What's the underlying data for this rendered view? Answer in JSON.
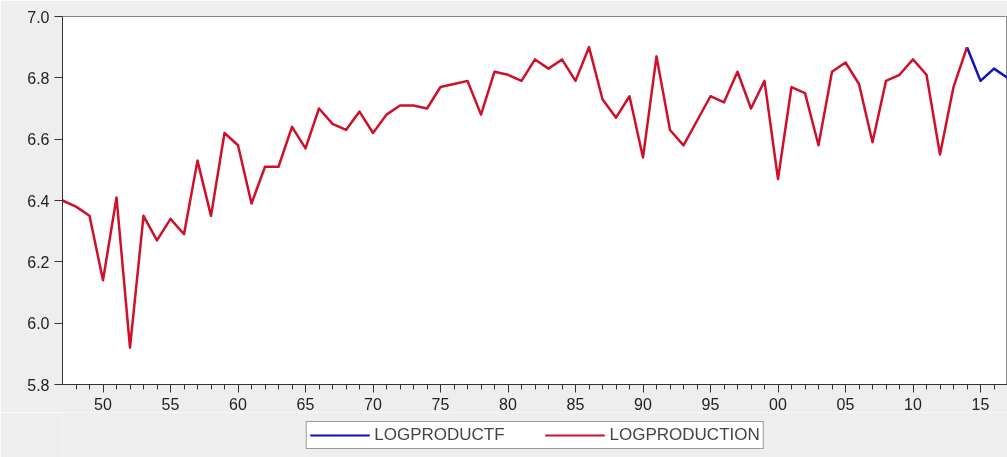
{
  "chart_data": {
    "type": "line",
    "x": [
      1947,
      1948,
      1949,
      1950,
      1951,
      1952,
      1953,
      1954,
      1955,
      1956,
      1957,
      1958,
      1959,
      1960,
      1961,
      1962,
      1963,
      1964,
      1965,
      1966,
      1967,
      1968,
      1969,
      1970,
      1971,
      1972,
      1973,
      1974,
      1975,
      1976,
      1977,
      1978,
      1979,
      1980,
      1981,
      1982,
      1983,
      1984,
      1985,
      1986,
      1987,
      1988,
      1989,
      1990,
      1991,
      1992,
      1993,
      1994,
      1995,
      1996,
      1997,
      1998,
      1999,
      2000,
      2001,
      2002,
      2003,
      2004,
      2005,
      2006,
      2007,
      2008,
      2009,
      2010,
      2011,
      2012,
      2013,
      2014,
      2015,
      2016,
      2017
    ],
    "series": [
      {
        "name": "LOGPRODUCTF",
        "color": "#1010c0",
        "values": [
          null,
          null,
          null,
          null,
          null,
          null,
          null,
          null,
          null,
          null,
          null,
          null,
          null,
          null,
          null,
          null,
          null,
          null,
          null,
          null,
          null,
          null,
          null,
          null,
          null,
          null,
          null,
          null,
          null,
          null,
          null,
          null,
          null,
          null,
          null,
          null,
          null,
          null,
          null,
          null,
          null,
          null,
          null,
          null,
          null,
          null,
          null,
          null,
          null,
          null,
          null,
          null,
          null,
          null,
          null,
          null,
          null,
          null,
          null,
          null,
          null,
          null,
          null,
          null,
          null,
          null,
          null,
          6.9,
          6.79,
          6.83,
          6.8
        ]
      },
      {
        "name": "LOGPRODUCTION",
        "color": "#d0102a",
        "values": [
          6.4,
          6.38,
          6.35,
          6.14,
          6.41,
          5.92,
          6.35,
          6.27,
          6.34,
          6.29,
          6.53,
          6.35,
          6.62,
          6.58,
          6.39,
          6.51,
          6.51,
          6.64,
          6.57,
          6.7,
          6.65,
          6.63,
          6.69,
          6.62,
          6.68,
          6.71,
          6.71,
          6.7,
          6.77,
          6.78,
          6.79,
          6.68,
          6.82,
          6.81,
          6.79,
          6.86,
          6.83,
          6.86,
          6.79,
          6.9,
          6.73,
          6.67,
          6.74,
          6.54,
          6.87,
          6.63,
          6.58,
          6.66,
          6.74,
          6.72,
          6.82,
          6.7,
          6.79,
          6.47,
          6.77,
          6.75,
          6.58,
          6.82,
          6.85,
          6.78,
          6.59,
          6.79,
          6.81,
          6.86,
          6.81,
          6.55,
          6.77,
          6.9,
          null,
          null,
          null
        ]
      }
    ],
    "xlim": [
      1947,
      2017
    ],
    "xticks": [
      {
        "value": 1948,
        "label": null
      },
      {
        "value": 1949,
        "label": null
      },
      {
        "value": 1950,
        "label": "50"
      },
      {
        "value": 1951,
        "label": null
      },
      {
        "value": 1952,
        "label": null
      },
      {
        "value": 1953,
        "label": null
      },
      {
        "value": 1954,
        "label": null
      },
      {
        "value": 1955,
        "label": "55"
      },
      {
        "value": 1956,
        "label": null
      },
      {
        "value": 1957,
        "label": null
      },
      {
        "value": 1958,
        "label": null
      },
      {
        "value": 1959,
        "label": null
      },
      {
        "value": 1960,
        "label": "60"
      },
      {
        "value": 1961,
        "label": null
      },
      {
        "value": 1962,
        "label": null
      },
      {
        "value": 1963,
        "label": null
      },
      {
        "value": 1964,
        "label": null
      },
      {
        "value": 1965,
        "label": "65"
      },
      {
        "value": 1966,
        "label": null
      },
      {
        "value": 1967,
        "label": null
      },
      {
        "value": 1968,
        "label": null
      },
      {
        "value": 1969,
        "label": null
      },
      {
        "value": 1970,
        "label": "70"
      },
      {
        "value": 1971,
        "label": null
      },
      {
        "value": 1972,
        "label": null
      },
      {
        "value": 1973,
        "label": null
      },
      {
        "value": 1974,
        "label": null
      },
      {
        "value": 1975,
        "label": "75"
      },
      {
        "value": 1976,
        "label": null
      },
      {
        "value": 1977,
        "label": null
      },
      {
        "value": 1978,
        "label": null
      },
      {
        "value": 1979,
        "label": null
      },
      {
        "value": 1980,
        "label": "80"
      },
      {
        "value": 1981,
        "label": null
      },
      {
        "value": 1982,
        "label": null
      },
      {
        "value": 1983,
        "label": null
      },
      {
        "value": 1984,
        "label": null
      },
      {
        "value": 1985,
        "label": "85"
      },
      {
        "value": 1986,
        "label": null
      },
      {
        "value": 1987,
        "label": null
      },
      {
        "value": 1988,
        "label": null
      },
      {
        "value": 1989,
        "label": null
      },
      {
        "value": 1990,
        "label": "90"
      },
      {
        "value": 1991,
        "label": null
      },
      {
        "value": 1992,
        "label": null
      },
      {
        "value": 1993,
        "label": null
      },
      {
        "value": 1994,
        "label": null
      },
      {
        "value": 1995,
        "label": "95"
      },
      {
        "value": 1996,
        "label": null
      },
      {
        "value": 1997,
        "label": null
      },
      {
        "value": 1998,
        "label": null
      },
      {
        "value": 1999,
        "label": null
      },
      {
        "value": 2000,
        "label": "00"
      },
      {
        "value": 2001,
        "label": null
      },
      {
        "value": 2002,
        "label": null
      },
      {
        "value": 2003,
        "label": null
      },
      {
        "value": 2004,
        "label": null
      },
      {
        "value": 2005,
        "label": "05"
      },
      {
        "value": 2006,
        "label": null
      },
      {
        "value": 2007,
        "label": null
      },
      {
        "value": 2008,
        "label": null
      },
      {
        "value": 2009,
        "label": null
      },
      {
        "value": 2010,
        "label": "10"
      },
      {
        "value": 2011,
        "label": null
      },
      {
        "value": 2012,
        "label": null
      },
      {
        "value": 2013,
        "label": null
      },
      {
        "value": 2014,
        "label": null
      },
      {
        "value": 2015,
        "label": "15"
      },
      {
        "value": 2016,
        "label": null
      }
    ],
    "ylim": [
      5.8,
      7.0
    ],
    "yticks": [
      {
        "value": 5.8,
        "label": "5.8"
      },
      {
        "value": 6.0,
        "label": "6.0"
      },
      {
        "value": 6.2,
        "label": "6.2"
      },
      {
        "value": 6.4,
        "label": "6.4"
      },
      {
        "value": 6.6,
        "label": "6.6"
      },
      {
        "value": 6.8,
        "label": "6.8"
      },
      {
        "value": 7.0,
        "label": "7.0"
      }
    ],
    "grid": false,
    "legend": "bottom",
    "marker": "none",
    "line_style": "solid"
  }
}
